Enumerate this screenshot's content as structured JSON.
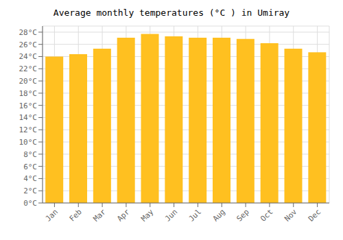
{
  "chart_data": {
    "type": "bar",
    "title": "Average monthly temperatures (°C ) in Umiray",
    "categories": [
      "Jan",
      "Feb",
      "Mar",
      "Apr",
      "May",
      "Jun",
      "Jul",
      "Aug",
      "Sep",
      "Oct",
      "Nov",
      "Dec"
    ],
    "values": [
      24.0,
      24.4,
      25.3,
      27.1,
      27.7,
      27.3,
      27.1,
      27.1,
      26.9,
      26.2,
      25.3,
      24.7
    ],
    "color": "#FFC020",
    "ylim": [
      0,
      29
    ],
    "yticks": [
      {
        "value": 0,
        "label": "0°C"
      },
      {
        "value": 2,
        "label": "2°C"
      },
      {
        "value": 4,
        "label": "4°C"
      },
      {
        "value": 6,
        "label": "6°C"
      },
      {
        "value": 8,
        "label": "8°C"
      },
      {
        "value": 10,
        "label": "10°C"
      },
      {
        "value": 12,
        "label": "12°C"
      },
      {
        "value": 14,
        "label": "14°C"
      },
      {
        "value": 16,
        "label": "16°C"
      },
      {
        "value": 18,
        "label": "18°C"
      },
      {
        "value": 20,
        "label": "20°C"
      },
      {
        "value": 22,
        "label": "22°C"
      },
      {
        "value": 24,
        "label": "24°C"
      },
      {
        "value": 26,
        "label": "26°C"
      },
      {
        "value": 28,
        "label": "28°C"
      }
    ],
    "grid": true
  }
}
